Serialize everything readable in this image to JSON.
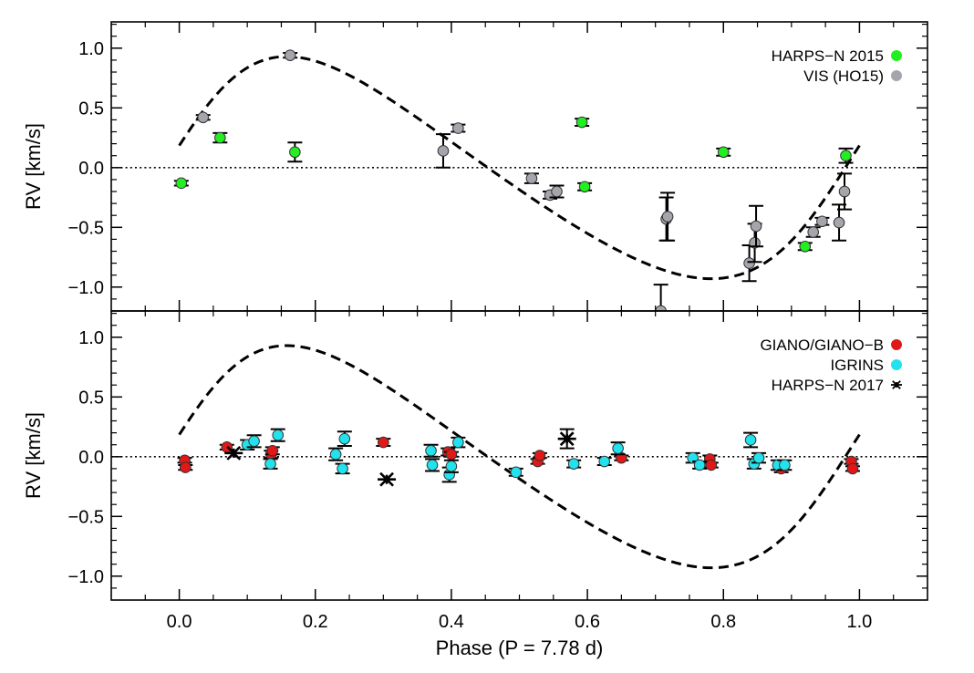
{
  "colors": {
    "harps_2015": "#22ee22",
    "vis": "#a7a4ab",
    "giano": "#e01818",
    "igrins": "#22e2ee",
    "harps_2017": "#000000"
  },
  "chart_data": [
    {
      "type": "scatter",
      "panel": "top",
      "xlabel": "",
      "ylabel": "RV [km/s]",
      "xlim": [
        -0.1,
        1.1
      ],
      "ylim": [
        -1.2,
        1.22
      ],
      "xticks": [
        0.0,
        0.2,
        0.4,
        0.6,
        0.8,
        1.0
      ],
      "xtick_labels": [],
      "yticks": [
        -1.0,
        -0.5,
        0.0,
        0.5,
        1.0
      ],
      "ytick_labels": [
        "−1.0",
        "−0.5",
        "0.0",
        "0.5",
        "1.0"
      ],
      "legend_position": "top-right",
      "reference_line": 0,
      "model_curve": {
        "style": "dashed",
        "amplitude": 0.93,
        "phase_range": [
          0.0,
          1.0
        ]
      },
      "series": [
        {
          "name": "HARPS−N 2015",
          "marker": "circle",
          "color_key": "harps_2015",
          "points": [
            {
              "x": 0.003,
              "y": -0.13,
              "err": 0.02
            },
            {
              "x": 0.06,
              "y": 0.25,
              "err": 0.04
            },
            {
              "x": 0.17,
              "y": 0.13,
              "err": 0.08
            },
            {
              "x": 0.592,
              "y": 0.38,
              "err": 0.03
            },
            {
              "x": 0.596,
              "y": -0.16,
              "err": 0.03
            },
            {
              "x": 0.8,
              "y": 0.13,
              "err": 0.03
            },
            {
              "x": 0.92,
              "y": -0.66,
              "err": 0.03
            },
            {
              "x": 0.98,
              "y": 0.1,
              "err": 0.06
            }
          ]
        },
        {
          "name": "VIS (HO15)",
          "marker": "circle",
          "color_key": "vis",
          "points": [
            {
              "x": 0.035,
              "y": 0.42,
              "err": 0.02
            },
            {
              "x": 0.163,
              "y": 0.94,
              "err": 0.02
            },
            {
              "x": 0.388,
              "y": 0.14,
              "err": 0.14
            },
            {
              "x": 0.41,
              "y": 0.33,
              "err": 0.03
            },
            {
              "x": 0.518,
              "y": -0.09,
              "err": 0.04
            },
            {
              "x": 0.545,
              "y": -0.23,
              "err": 0.03
            },
            {
              "x": 0.555,
              "y": -0.2,
              "err": 0.05
            },
            {
              "x": 0.708,
              "y": -1.2,
              "err": 0.22
            },
            {
              "x": 0.716,
              "y": -0.43,
              "err": 0.18
            },
            {
              "x": 0.718,
              "y": -0.41,
              "err": 0.2
            },
            {
              "x": 0.838,
              "y": -0.8,
              "err": 0.15
            },
            {
              "x": 0.846,
              "y": -0.63,
              "err": 0.16
            },
            {
              "x": 0.848,
              "y": -0.49,
              "err": 0.17
            },
            {
              "x": 0.932,
              "y": -0.54,
              "err": 0.04
            },
            {
              "x": 0.945,
              "y": -0.45,
              "err": 0.03
            },
            {
              "x": 0.97,
              "y": -0.46,
              "err": 0.15
            },
            {
              "x": 0.978,
              "y": -0.2,
              "err": 0.15
            }
          ]
        }
      ]
    },
    {
      "type": "scatter",
      "panel": "bottom",
      "xlabel": "Phase (P = 7.78 d)",
      "ylabel": "RV [km/s]",
      "xlim": [
        -0.1,
        1.1
      ],
      "ylim": [
        -1.2,
        1.22
      ],
      "xticks": [
        0.0,
        0.2,
        0.4,
        0.6,
        0.8,
        1.0
      ],
      "xtick_labels": [
        "0.0",
        "0.2",
        "0.4",
        "0.6",
        "0.8",
        "1.0"
      ],
      "yticks": [
        -1.0,
        -0.5,
        0.0,
        0.5,
        1.0
      ],
      "ytick_labels": [
        "−1.0",
        "−0.5",
        "0.0",
        "0.5",
        "1.0"
      ],
      "legend_position": "top-right",
      "reference_line": 0,
      "model_curve": {
        "style": "dashed",
        "amplitude": 0.93,
        "phase_range": [
          0.0,
          1.0
        ]
      },
      "series": [
        {
          "name": "GIANO/GIANO−B",
          "marker": "circle",
          "color_key": "giano",
          "points": [
            {
              "x": 0.008,
              "y": -0.03,
              "err": 0.02
            },
            {
              "x": 0.009,
              "y": -0.09,
              "err": 0.02
            },
            {
              "x": 0.07,
              "y": 0.08,
              "err": 0.02
            },
            {
              "x": 0.135,
              "y": 0.02,
              "err": 0.03
            },
            {
              "x": 0.137,
              "y": 0.05,
              "err": 0.03
            },
            {
              "x": 0.3,
              "y": 0.12,
              "err": 0.03
            },
            {
              "x": 0.395,
              "y": 0.04,
              "err": 0.03
            },
            {
              "x": 0.4,
              "y": 0.02,
              "err": 0.02
            },
            {
              "x": 0.527,
              "y": -0.04,
              "err": 0.02
            },
            {
              "x": 0.53,
              "y": 0.01,
              "err": 0.02
            },
            {
              "x": 0.65,
              "y": -0.01,
              "err": 0.02
            },
            {
              "x": 0.78,
              "y": -0.02,
              "err": 0.03
            },
            {
              "x": 0.782,
              "y": -0.07,
              "err": 0.02
            },
            {
              "x": 0.885,
              "y": -0.1,
              "err": 0.03
            },
            {
              "x": 0.988,
              "y": -0.04,
              "err": 0.02
            },
            {
              "x": 0.99,
              "y": -0.1,
              "err": 0.02
            }
          ]
        },
        {
          "name": "IGRINS",
          "marker": "circle",
          "color_key": "igrins",
          "points": [
            {
              "x": 0.1,
              "y": 0.1,
              "err": 0.04
            },
            {
              "x": 0.11,
              "y": 0.13,
              "err": 0.05
            },
            {
              "x": 0.134,
              "y": -0.06,
              "err": 0.04
            },
            {
              "x": 0.145,
              "y": 0.18,
              "err": 0.05
            },
            {
              "x": 0.23,
              "y": 0.02,
              "err": 0.05
            },
            {
              "x": 0.24,
              "y": -0.1,
              "err": 0.04
            },
            {
              "x": 0.243,
              "y": 0.15,
              "err": 0.06
            },
            {
              "x": 0.37,
              "y": 0.05,
              "err": 0.05
            },
            {
              "x": 0.372,
              "y": -0.07,
              "err": 0.05
            },
            {
              "x": 0.397,
              "y": -0.15,
              "err": 0.06
            },
            {
              "x": 0.4,
              "y": -0.08,
              "err": 0.05
            },
            {
              "x": 0.41,
              "y": 0.12,
              "err": 0.04
            },
            {
              "x": 0.495,
              "y": -0.13,
              "err": 0.03
            },
            {
              "x": 0.58,
              "y": -0.06,
              "err": 0.03
            },
            {
              "x": 0.625,
              "y": -0.04,
              "err": 0.03
            },
            {
              "x": 0.645,
              "y": 0.07,
              "err": 0.05
            },
            {
              "x": 0.755,
              "y": -0.01,
              "err": 0.04
            },
            {
              "x": 0.765,
              "y": -0.07,
              "err": 0.03
            },
            {
              "x": 0.84,
              "y": 0.14,
              "err": 0.06
            },
            {
              "x": 0.845,
              "y": -0.06,
              "err": 0.04
            },
            {
              "x": 0.852,
              "y": -0.01,
              "err": 0.04
            },
            {
              "x": 0.88,
              "y": -0.07,
              "err": 0.04
            },
            {
              "x": 0.89,
              "y": -0.07,
              "err": 0.04
            }
          ]
        },
        {
          "name": "HARPS−N 2017",
          "marker": "asterisk",
          "color_key": "harps_2017",
          "points": [
            {
              "x": 0.08,
              "y": 0.03,
              "err": 0.0
            },
            {
              "x": 0.305,
              "y": -0.19,
              "err": 0.0
            },
            {
              "x": 0.57,
              "y": 0.15,
              "err": 0.08
            }
          ]
        }
      ]
    }
  ]
}
